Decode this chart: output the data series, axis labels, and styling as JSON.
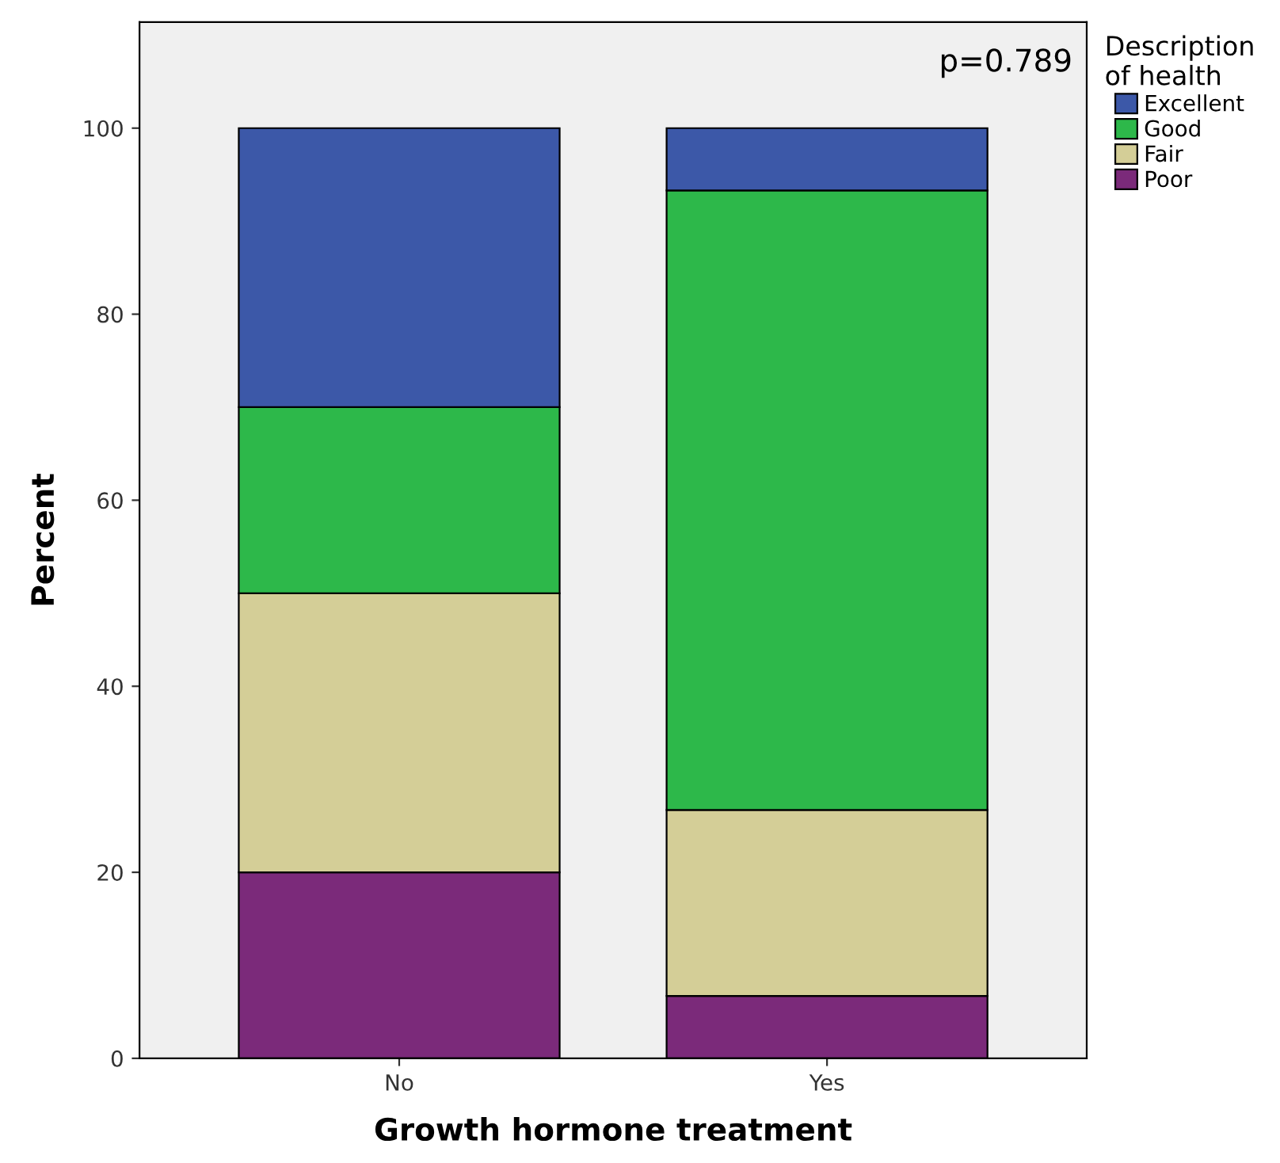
{
  "chart_data": {
    "type": "bar",
    "stacked": true,
    "xlabel": "Growth hormone treatment",
    "ylabel": "Percent",
    "legend_title": "Description\nof health",
    "legend": "top right",
    "categories": [
      "No",
      "Yes"
    ],
    "series": [
      {
        "name": "Poor",
        "color": "#7b2a7a",
        "values": [
          20,
          6.7
        ]
      },
      {
        "name": "Fair",
        "color": "#d4ce97",
        "values": [
          30,
          20
        ]
      },
      {
        "name": "Good",
        "color": "#2db84a",
        "values": [
          20,
          66.6
        ]
      },
      {
        "name": "Excellent",
        "color": "#3c58a8",
        "values": [
          30,
          6.7
        ]
      }
    ],
    "ylim": [
      0,
      111.4
    ],
    "yticks": [
      0,
      20,
      40,
      60,
      80,
      100
    ],
    "grid": false,
    "annotations": [
      "p=0.789"
    ]
  }
}
